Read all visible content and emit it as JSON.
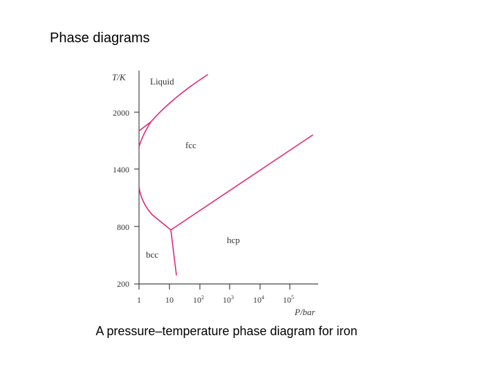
{
  "slide": {
    "title": "Phase diagrams",
    "caption": "A pressure–temperature phase diagram for iron"
  },
  "diagram": {
    "y_axis_label": "T/K",
    "x_axis_label": "P/bar",
    "y_ticks": [
      "2000",
      "1400",
      "800",
      "200"
    ],
    "x_ticks": [
      {
        "base": "1",
        "exp": ""
      },
      {
        "base": "10",
        "exp": ""
      },
      {
        "base": "10",
        "exp": "2"
      },
      {
        "base": "10",
        "exp": "3"
      },
      {
        "base": "10",
        "exp": "4"
      },
      {
        "base": "10",
        "exp": "5"
      }
    ],
    "regions": {
      "liquid": "Liquid",
      "fcc": "fcc",
      "hcp": "hcp",
      "bcc": "bcc"
    },
    "line_color": "#e0267a",
    "axis_color": "#444444"
  }
}
